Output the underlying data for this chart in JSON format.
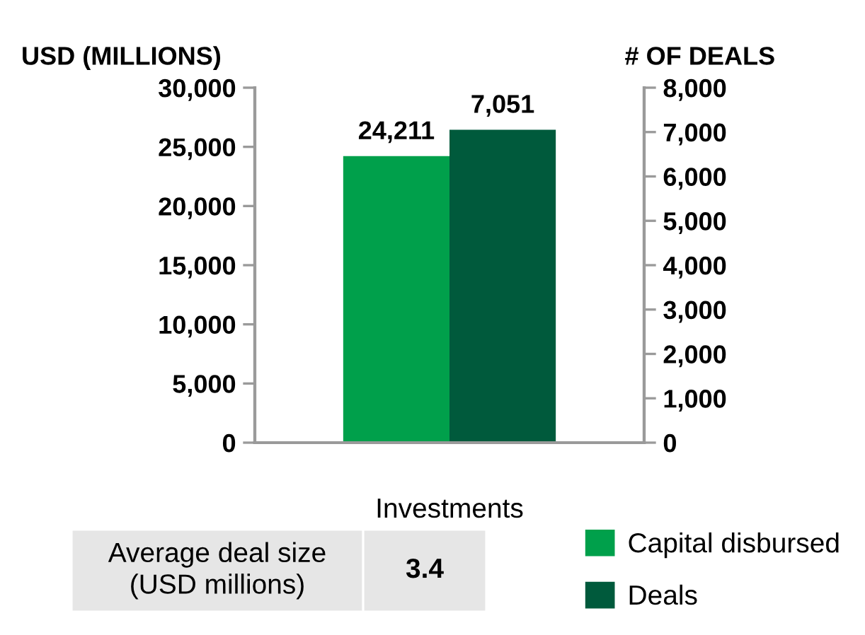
{
  "chart_data": {
    "type": "bar",
    "categories": [
      "Investments"
    ],
    "series": [
      {
        "name": "Capital disbursed",
        "color": "#00a04b",
        "values": [
          24211
        ],
        "value_labels": [
          "24,211"
        ]
      },
      {
        "name": "Deals",
        "color": "#005a3c",
        "values": [
          7051
        ],
        "value_labels": [
          "7,051"
        ],
        "axis": "y2"
      }
    ],
    "ylabel": "USD (MILLIONS)",
    "y2label": "# OF DEALS",
    "ylim": [
      0,
      30000
    ],
    "yticks": [
      0,
      {
        "value": 5000,
        "label": "5,000"
      },
      {
        "value": 10000,
        "label": "10,000"
      },
      {
        "value": 15000,
        "label": "15,000"
      },
      {
        "value": 20000,
        "label": "20,000"
      },
      {
        "value": 25000,
        "label": "25,000"
      },
      {
        "value": 30000,
        "label": "30,000"
      }
    ],
    "y2lim": [
      0,
      8000
    ],
    "y2ticks": [
      0,
      {
        "value": 1000,
        "label": "1,000"
      },
      {
        "value": 2000,
        "label": "2,000"
      },
      {
        "value": 3000,
        "label": "3,000"
      },
      {
        "value": 4000,
        "label": "4,000"
      },
      {
        "value": 5000,
        "label": "5,000"
      },
      {
        "value": 6000,
        "label": "6,000"
      },
      {
        "value": 7000,
        "label": "7,000"
      },
      {
        "value": 8000,
        "label": "8,000"
      }
    ],
    "grid": false,
    "legend": "bottom right",
    "annotations": [
      "Average deal size\n(USD millions)",
      "3.4"
    ]
  }
}
